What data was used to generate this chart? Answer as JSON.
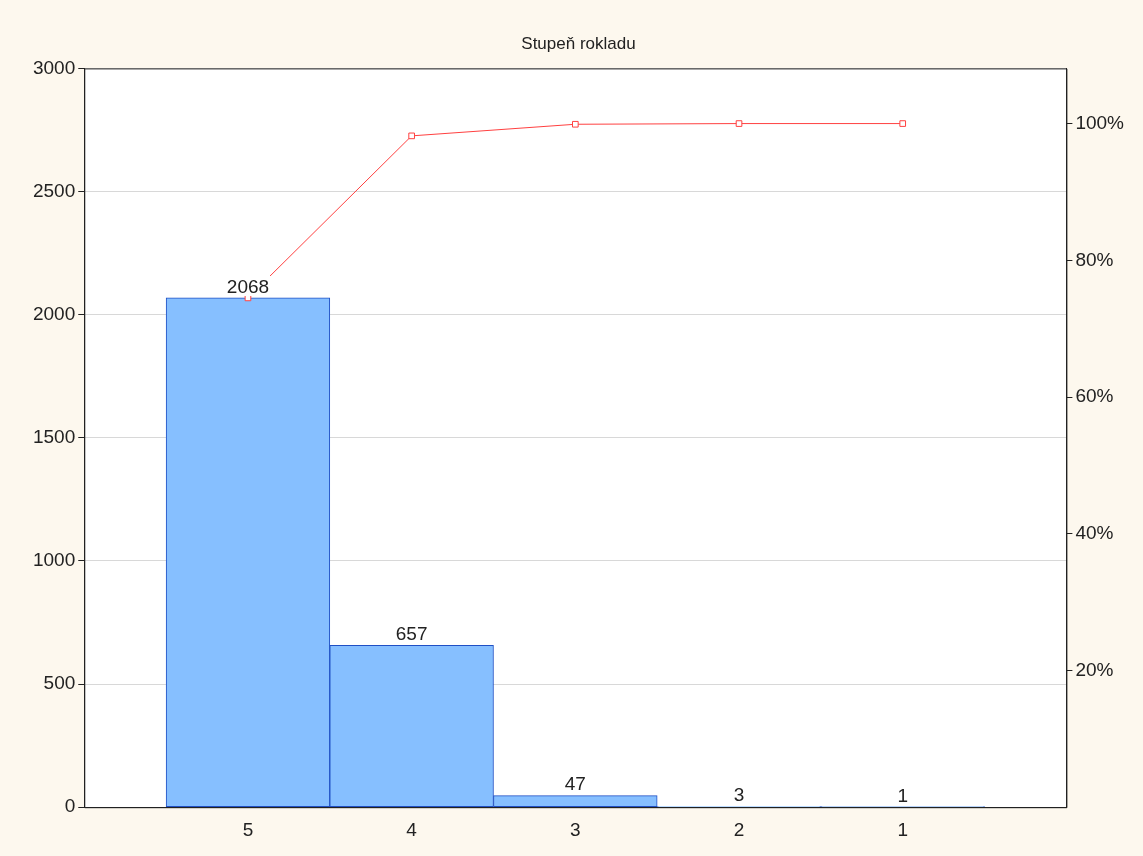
{
  "chart_data": {
    "type": "bar",
    "title": "Stupeň rokladu",
    "categories": [
      "5",
      "4",
      "3",
      "2",
      "1"
    ],
    "series": [
      {
        "type": "bar",
        "color": "#86bfff",
        "values": [
          2068,
          657,
          47,
          3,
          1
        ],
        "value_labels": [
          "2068",
          "657",
          "47",
          "3",
          "1"
        ]
      },
      {
        "type": "line",
        "color": "#ff4040",
        "values": [
          74.5,
          98.2,
          99.9,
          100,
          100
        ],
        "axis": "y2",
        "marker": "square"
      }
    ],
    "ylim": [
      0,
      3000
    ],
    "yticks": [
      0,
      500,
      1000,
      1500,
      2000,
      2500,
      3000
    ],
    "y2lim": [
      0,
      108.07
    ],
    "y2ticks": [
      {
        "value": 20,
        "label": "20%"
      },
      {
        "value": 40,
        "label": "40%"
      },
      {
        "value": 60,
        "label": "60%"
      },
      {
        "value": 80,
        "label": "80%"
      },
      {
        "value": 100,
        "label": "100%"
      }
    ],
    "grid": "y",
    "legend": false
  }
}
